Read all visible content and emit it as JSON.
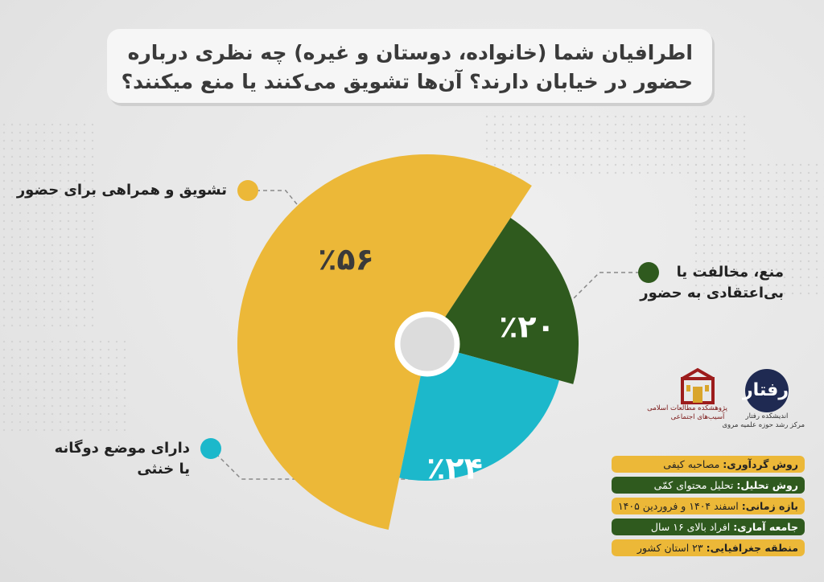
{
  "title": {
    "line1": "اطرافیان شما (خانواده، دوستان و غیره) چه نظری درباره",
    "line2": "حضور در خیابان دارند؟ آن‌ها تشویق می‌کنند یا منع میکنند؟"
  },
  "colors": {
    "yellow": "#ecb838",
    "green": "#2f5a1e",
    "teal": "#1cb8cb",
    "hole": "#dcdcdc",
    "label_dark": "#3a3a3a",
    "label_light": "#ffffff"
  },
  "chart_data": {
    "type": "pie",
    "series": [
      {
        "label_lines": [
          "تشویق و همراهی برای حضور"
        ],
        "value": 56,
        "value_label": "٪۵۶",
        "color": "#ecb838"
      },
      {
        "label_lines": [
          "منع، مخالفت یا",
          "بی‌اعتقادی به حضور"
        ],
        "value": 20,
        "value_label": "٪۲۰",
        "color": "#2f5a1e"
      },
      {
        "label_lines": [
          "دارای موضع دوگانه",
          "یا خنثی"
        ],
        "value": 24,
        "value_label": "٪۲۴",
        "color": "#1cb8cb"
      }
    ]
  },
  "logos": {
    "rahtar_mark": "رفتار",
    "rahtar_caption1": "اندیشکده رفتار",
    "rahtar_caption2": "مرکز رشد حوزه علمیه مروی",
    "inst_caption1": "پژوهشکده مطالعات اسلامی",
    "inst_caption2": "آسیب‌های اجتماعی"
  },
  "info": [
    {
      "key": "روش گردآوری:",
      "value": " مصاحبه کیفی",
      "style": "yellow"
    },
    {
      "key": "روش تحلیل:",
      "value": " تحلیل محتوای کمّی",
      "style": "green"
    },
    {
      "key": "بازه زمانی:",
      "value": " اسفند ۱۴۰۴ و فروردین ۱۴۰۵",
      "style": "yellow"
    },
    {
      "key": "جامعه آماری:",
      "value": " افراد بالای ۱۶ سال",
      "style": "green"
    },
    {
      "key": "منطقه جغرافیایی:",
      "value": " ۲۳ استان کشور",
      "style": "yellow"
    }
  ]
}
